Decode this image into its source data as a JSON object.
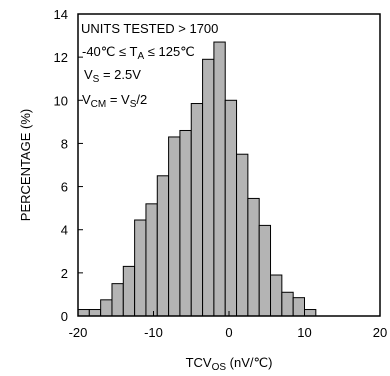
{
  "chart_data": {
    "type": "bar",
    "title": "",
    "xlabel_main": "TCV",
    "xlabel_sub": "OS",
    "xlabel_unit": " (nV/℃)",
    "ylabel": "PERCENTAGE (%)",
    "xlim": [
      -20,
      20
    ],
    "ylim": [
      0,
      14
    ],
    "xticks": [
      -20,
      -10,
      0,
      10,
      20
    ],
    "yticks": [
      0,
      2,
      4,
      6,
      8,
      10,
      12,
      14
    ],
    "grid": false,
    "bar_color": "#b4b4b4",
    "bin_width": 1.5,
    "bins": [
      {
        "x0": -20.0,
        "value": 0.3
      },
      {
        "x0": -18.5,
        "value": 0.3
      },
      {
        "x0": -17.0,
        "value": 0.75
      },
      {
        "x0": -15.5,
        "value": 1.5
      },
      {
        "x0": -14.0,
        "value": 2.3
      },
      {
        "x0": -12.5,
        "value": 4.45
      },
      {
        "x0": -11.0,
        "value": 5.2
      },
      {
        "x0": -9.5,
        "value": 6.5
      },
      {
        "x0": -8.0,
        "value": 8.3
      },
      {
        "x0": -6.5,
        "value": 8.6
      },
      {
        "x0": -5.0,
        "value": 9.85
      },
      {
        "x0": -3.5,
        "value": 11.9
      },
      {
        "x0": -2.0,
        "value": 12.7
      },
      {
        "x0": -0.5,
        "value": 10.0
      },
      {
        "x0": 1.0,
        "value": 7.5
      },
      {
        "x0": 2.5,
        "value": 5.45
      },
      {
        "x0": 4.0,
        "value": 4.2
      },
      {
        "x0": 5.5,
        "value": 1.9
      },
      {
        "x0": 7.0,
        "value": 1.1
      },
      {
        "x0": 8.5,
        "value": 0.85
      },
      {
        "x0": 10.0,
        "value": 0.3
      }
    ],
    "annotations": {
      "line1": "UNITS TESTED > 1700",
      "line2_pre": "-40℃ ≤ T",
      "line2_sub": "A",
      "line2_post": " ≤  125℃",
      "line3_pre": "V",
      "line3_sub": "S",
      "line3_post": " = 2.5V",
      "line4_pre": "V",
      "line4_sub": "CM",
      "line4_mid": " = V",
      "line4_sub2": "S",
      "line4_post": "/2"
    }
  }
}
